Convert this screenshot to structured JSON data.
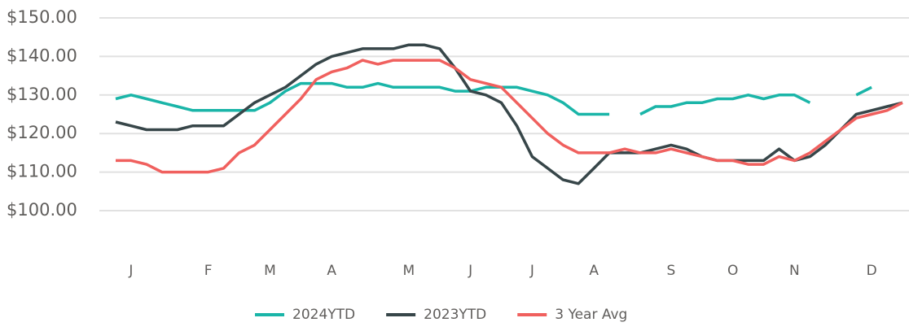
{
  "chart_data": {
    "type": "line",
    "categories": [
      null,
      "J",
      null,
      null,
      null,
      null,
      "F",
      null,
      null,
      null,
      "M",
      null,
      null,
      null,
      "A",
      null,
      null,
      null,
      null,
      "M",
      null,
      null,
      null,
      "J",
      null,
      null,
      null,
      "J",
      null,
      null,
      null,
      "A",
      null,
      null,
      null,
      null,
      "S",
      null,
      null,
      null,
      "O",
      null,
      null,
      null,
      "N",
      null,
      null,
      null,
      null,
      "D",
      null,
      null
    ],
    "series": [
      {
        "name": "2024YTD",
        "color": "#1ab5a8",
        "values": [
          129,
          130,
          129,
          128,
          127,
          126,
          126,
          126,
          126,
          126,
          128,
          131,
          133,
          133,
          133,
          132,
          132,
          133,
          132,
          132,
          132,
          132,
          131,
          131,
          132,
          132,
          132,
          131,
          130,
          128,
          125,
          125,
          125,
          null,
          125,
          127,
          127,
          128,
          128,
          129,
          129,
          130,
          129,
          130,
          130,
          128,
          null,
          null,
          130,
          132,
          null,
          null
        ]
      },
      {
        "name": "2023YTD",
        "color": "#374649",
        "values": [
          123,
          122,
          121,
          121,
          121,
          122,
          122,
          122,
          125,
          128,
          130,
          132,
          135,
          138,
          140,
          141,
          142,
          142,
          142,
          143,
          143,
          142,
          137,
          131,
          130,
          128,
          122,
          114,
          111,
          108,
          107,
          111,
          115,
          115,
          115,
          116,
          117,
          116,
          114,
          113,
          113,
          113,
          113,
          116,
          113,
          114,
          117,
          121,
          125,
          126,
          127,
          128
        ]
      },
      {
        "name": "3 Year Avg",
        "color": "#f0605e",
        "values": [
          113,
          113,
          112,
          110,
          110,
          110,
          110,
          111,
          115,
          117,
          121,
          125,
          129,
          134,
          136,
          137,
          139,
          138,
          139,
          139,
          139,
          139,
          137,
          134,
          133,
          132,
          128,
          124,
          120,
          117,
          115,
          115,
          115,
          116,
          115,
          115,
          116,
          115,
          114,
          113,
          113,
          112,
          112,
          114,
          113,
          115,
          118,
          121,
          124,
          125,
          126,
          128
        ]
      }
    ],
    "ylim": [
      100,
      150
    ],
    "yticks": [
      {
        "value": 100,
        "label": "$100.00"
      },
      {
        "value": 110,
        "label": "$110.00"
      },
      {
        "value": 120,
        "label": "$120.00"
      },
      {
        "value": 130,
        "label": "$130.00"
      },
      {
        "value": 140,
        "label": "$140.00"
      },
      {
        "value": 150,
        "label": "$150.00"
      }
    ],
    "grid": true
  }
}
